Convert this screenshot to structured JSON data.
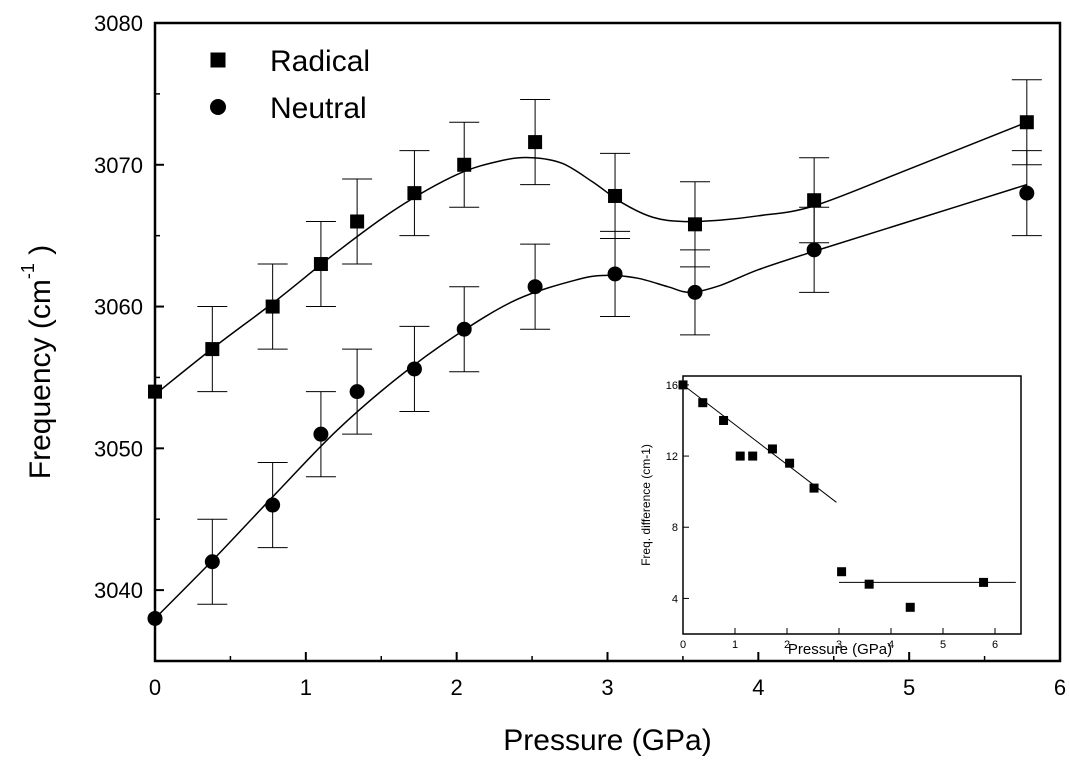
{
  "chart_data": [
    {
      "type": "scatter",
      "xlabel": "Pressure (GPa)",
      "ylabel": "Frequency (cm",
      "ylabel_superscript": "-1",
      "ylabel_close": " )",
      "xlim": [
        0,
        6
      ],
      "ylim": [
        3035,
        3080
      ],
      "x_ticks": [
        "0",
        "1",
        "2",
        "3",
        "4",
        "5",
        "6"
      ],
      "y_ticks": [
        "3040",
        "3050",
        "3060",
        "3070",
        "3080"
      ],
      "x_tick_values": [
        0,
        1,
        2,
        3,
        4,
        5,
        6
      ],
      "y_tick_values": [
        3040,
        3050,
        3060,
        3070,
        3080
      ],
      "grid": false,
      "legend_position": "top-left",
      "series": [
        {
          "name": "Radical",
          "marker": "square",
          "points": [
            {
              "x": 0.0,
              "y": 3054,
              "err": 0
            },
            {
              "x": 0.38,
              "y": 3057,
              "err": 3
            },
            {
              "x": 0.78,
              "y": 3060,
              "err": 3
            },
            {
              "x": 1.1,
              "y": 3063,
              "err": 3
            },
            {
              "x": 1.34,
              "y": 3066,
              "err": 3
            },
            {
              "x": 1.72,
              "y": 3068,
              "err": 3
            },
            {
              "x": 2.05,
              "y": 3070,
              "err": 3
            },
            {
              "x": 2.52,
              "y": 3071.6,
              "err": 3
            },
            {
              "x": 3.05,
              "y": 3067.8,
              "err": 3
            },
            {
              "x": 3.58,
              "y": 3065.8,
              "err": 3
            },
            {
              "x": 4.37,
              "y": 3067.5,
              "err": 3
            },
            {
              "x": 5.78,
              "y": 3073,
              "err": 3
            }
          ],
          "fit": [
            [
              0,
              3053.8
            ],
            [
              0.4,
              3057.2
            ],
            [
              0.8,
              3060.4
            ],
            [
              1.2,
              3063.8
            ],
            [
              1.6,
              3066.9
            ],
            [
              2.0,
              3069.3
            ],
            [
              2.3,
              3070.3
            ],
            [
              2.5,
              3070.5
            ],
            [
              2.7,
              3070.1
            ],
            [
              2.9,
              3068.8
            ],
            [
              3.1,
              3067.3
            ],
            [
              3.3,
              3066.3
            ],
            [
              3.5,
              3066.0
            ],
            [
              3.75,
              3066.1
            ],
            [
              4.0,
              3066.4
            ],
            [
              4.37,
              3067.1
            ],
            [
              5.0,
              3069.7
            ],
            [
              5.78,
              3073.0
            ]
          ]
        },
        {
          "name": "Neutral",
          "marker": "circle",
          "points": [
            {
              "x": 0.0,
              "y": 3038,
              "err": 0
            },
            {
              "x": 0.38,
              "y": 3042,
              "err": 3
            },
            {
              "x": 0.78,
              "y": 3046,
              "err": 3
            },
            {
              "x": 1.1,
              "y": 3051,
              "err": 3
            },
            {
              "x": 1.34,
              "y": 3054,
              "err": 3
            },
            {
              "x": 1.72,
              "y": 3055.6,
              "err": 3
            },
            {
              "x": 2.05,
              "y": 3058.4,
              "err": 3
            },
            {
              "x": 2.52,
              "y": 3061.4,
              "err": 3
            },
            {
              "x": 3.05,
              "y": 3062.3,
              "err": 3
            },
            {
              "x": 3.58,
              "y": 3061,
              "err": 3
            },
            {
              "x": 4.37,
              "y": 3064,
              "err": 3
            },
            {
              "x": 5.78,
              "y": 3068,
              "err": 3
            }
          ],
          "fit": [
            [
              0,
              3038
            ],
            [
              0.4,
              3042.3
            ],
            [
              0.8,
              3046.8
            ],
            [
              1.2,
              3051.2
            ],
            [
              1.6,
              3054.9
            ],
            [
              2.0,
              3058.0
            ],
            [
              2.4,
              3060.5
            ],
            [
              2.8,
              3061.9
            ],
            [
              3.0,
              3062.2
            ],
            [
              3.2,
              3062.0
            ],
            [
              3.4,
              3061.4
            ],
            [
              3.55,
              3061.0
            ],
            [
              3.75,
              3061.5
            ],
            [
              4.0,
              3062.6
            ],
            [
              4.37,
              3063.9
            ],
            [
              5.0,
              3066.0
            ],
            [
              5.78,
              3068.6
            ]
          ]
        }
      ]
    },
    {
      "type": "scatter",
      "placement": "inset-bottom-right",
      "xlabel": "Pressure (GPa)",
      "ylabel": "Freq. difference (cm-1)",
      "xlim": [
        0,
        6.5
      ],
      "ylim": [
        2,
        16.5
      ],
      "x_ticks": [
        "0",
        "1",
        "2",
        "3",
        "4",
        "5",
        "6"
      ],
      "y_ticks": [
        "4",
        "8",
        "12",
        "16"
      ],
      "x_tick_values": [
        0,
        1,
        2,
        3,
        4,
        5,
        6
      ],
      "y_tick_values": [
        4,
        8,
        12,
        16
      ],
      "grid": false,
      "series": [
        {
          "marker": "square",
          "points": [
            {
              "x": 0.0,
              "y": 16
            },
            {
              "x": 0.38,
              "y": 15
            },
            {
              "x": 0.78,
              "y": 14
            },
            {
              "x": 1.1,
              "y": 12
            },
            {
              "x": 1.34,
              "y": 12
            },
            {
              "x": 1.72,
              "y": 12.4
            },
            {
              "x": 2.05,
              "y": 11.6
            },
            {
              "x": 2.52,
              "y": 10.2
            },
            {
              "x": 3.05,
              "y": 5.5
            },
            {
              "x": 3.58,
              "y": 4.8
            },
            {
              "x": 4.37,
              "y": 3.5
            },
            {
              "x": 5.78,
              "y": 4.9
            }
          ]
        }
      ],
      "fit_lines": [
        [
          [
            0,
            16
          ],
          [
            2.95,
            9.4
          ]
        ],
        [
          [
            3.0,
            4.9
          ],
          [
            6.4,
            4.9
          ]
        ]
      ]
    }
  ]
}
